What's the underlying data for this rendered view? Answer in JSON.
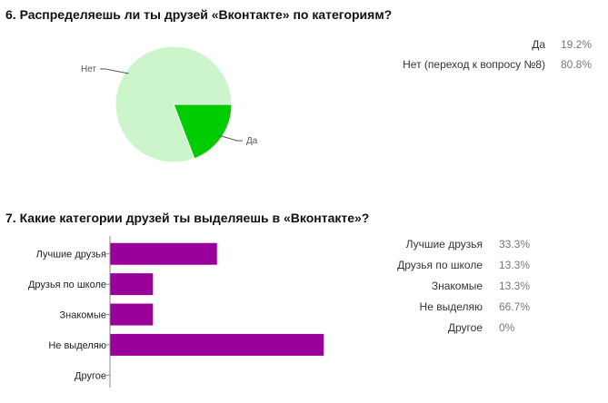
{
  "q6": {
    "title": "6. Распределяешь ли ты друзей «Вконтакте» по категориям?",
    "chart_data": {
      "type": "pie",
      "slices": [
        {
          "label": "Да",
          "value": 19.2,
          "pct_text": "19.2%",
          "color": "#00cc00"
        },
        {
          "label": "Нет (переход к вопросу №8)",
          "value": 80.8,
          "pct_text": "80.8%",
          "color": "#ccf5cc"
        }
      ],
      "pie_labels": [
        "Да",
        "Нет"
      ]
    }
  },
  "q7": {
    "title": "7. Какие категории друзей ты выделяешь в «Вконтакте»?",
    "chart_data": {
      "type": "bar",
      "orientation": "horizontal",
      "categories": [
        "Лучшие друзья",
        "Друзья по школе",
        "Знакомые",
        "Не выделяю",
        "Другое"
      ],
      "values": [
        33.3,
        13.3,
        13.3,
        66.7,
        0
      ],
      "pct_text": [
        "33.3%",
        "13.3%",
        "13.3%",
        "66.7%",
        "0%"
      ],
      "color": "#990099",
      "xlim": [
        0,
        100
      ]
    }
  }
}
